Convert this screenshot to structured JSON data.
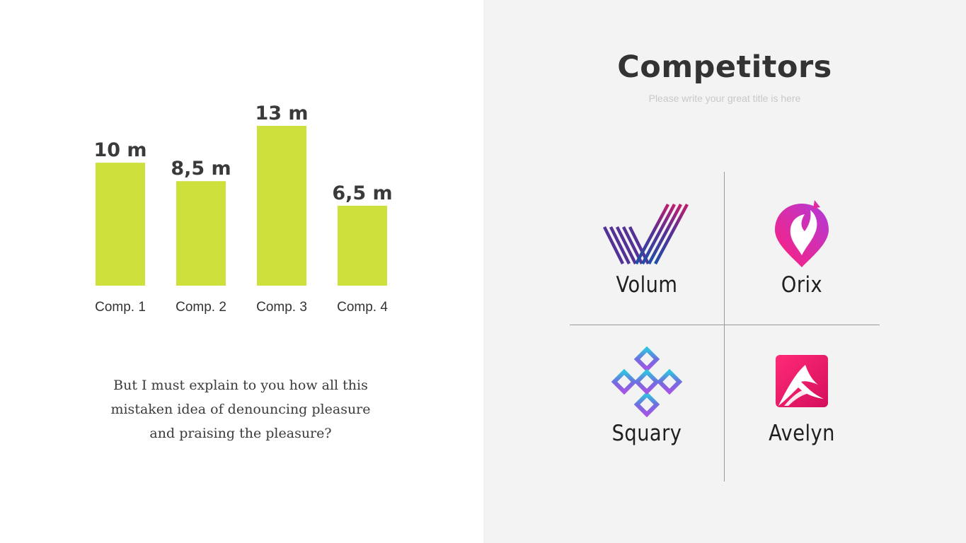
{
  "chart_data": {
    "type": "bar",
    "categories": [
      "Comp. 1",
      "Comp. 2",
      "Comp. 3",
      "Comp. 4"
    ],
    "values": [
      10,
      8.5,
      13,
      6.5
    ],
    "value_labels": [
      "10 m",
      "8,5 m",
      "13 m",
      "6,5 m"
    ],
    "title": "",
    "xlabel": "",
    "ylabel": "",
    "ylim": [
      0,
      13
    ],
    "grid": false,
    "bar_color": "#cde03b"
  },
  "description": {
    "lines": [
      "But I must explain to you how all this",
      "mistaken idea of denouncing pleasure",
      "and praising the pleasure?"
    ]
  },
  "header": {
    "title": "Competitors",
    "subtitle": "Please write your great title is here"
  },
  "competitors": [
    {
      "name": "Volum",
      "icon": "volum-logo-icon"
    },
    {
      "name": "Orix",
      "icon": "orix-logo-icon"
    },
    {
      "name": "Squary",
      "icon": "squary-logo-icon"
    },
    {
      "name": "Avelyn",
      "icon": "avelyn-logo-icon"
    }
  ]
}
